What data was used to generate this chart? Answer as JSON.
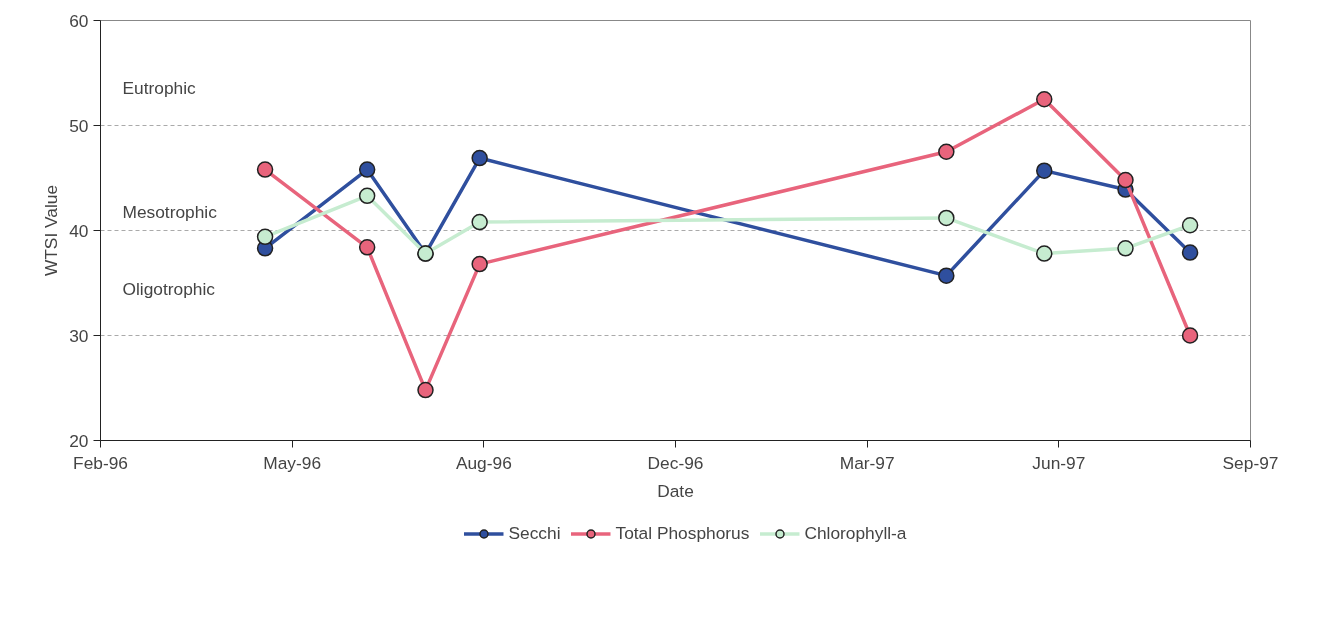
{
  "chart_data": {
    "type": "line",
    "xlabel": "Date",
    "ylabel": "WTSI Value",
    "xlim": [
      "1996-02-29",
      "1997-09-03"
    ],
    "xticks": [
      {
        "value": "1996-02-29",
        "label": "Feb-96"
      },
      {
        "value": "1996-05-31",
        "label": "May-96"
      },
      {
        "value": "1996-08-31",
        "label": "Aug-96"
      },
      {
        "value": "1996-12-01",
        "label": "Dec-96"
      },
      {
        "value": "1997-03-03",
        "label": "Mar-97"
      },
      {
        "value": "1997-06-03",
        "label": "Jun-97"
      },
      {
        "value": "1997-09-03",
        "label": "Sep-97"
      }
    ],
    "ylim": [
      20,
      60
    ],
    "yticks": [
      20,
      30,
      40,
      50,
      60
    ],
    "x": [
      "1996-05-18",
      "1996-07-06",
      "1996-08-03",
      "1996-08-29",
      "1997-04-10",
      "1997-05-27",
      "1997-07-05",
      "1997-08-05"
    ],
    "series": [
      {
        "name": "Secchi",
        "color": "#2f4f9e",
        "values": [
          38.3,
          45.8,
          37.8,
          46.9,
          35.7,
          45.7,
          43.9,
          37.9
        ]
      },
      {
        "name": "Total Phosphorus",
        "color": "#e8647c",
        "values": [
          45.8,
          38.4,
          24.8,
          36.8,
          47.5,
          52.5,
          44.8,
          30.0
        ]
      },
      {
        "name": "Chlorophyll-a",
        "color": "#c6ecd0",
        "values": [
          39.4,
          43.3,
          37.8,
          40.8,
          41.2,
          37.8,
          38.3,
          40.5
        ]
      }
    ],
    "annotations": [
      "Eutrophic",
      "Mesotrophic",
      "Oligotrophic"
    ],
    "grid": "y",
    "legend": "bottom",
    "marker": "circle",
    "line_style": "solid"
  }
}
